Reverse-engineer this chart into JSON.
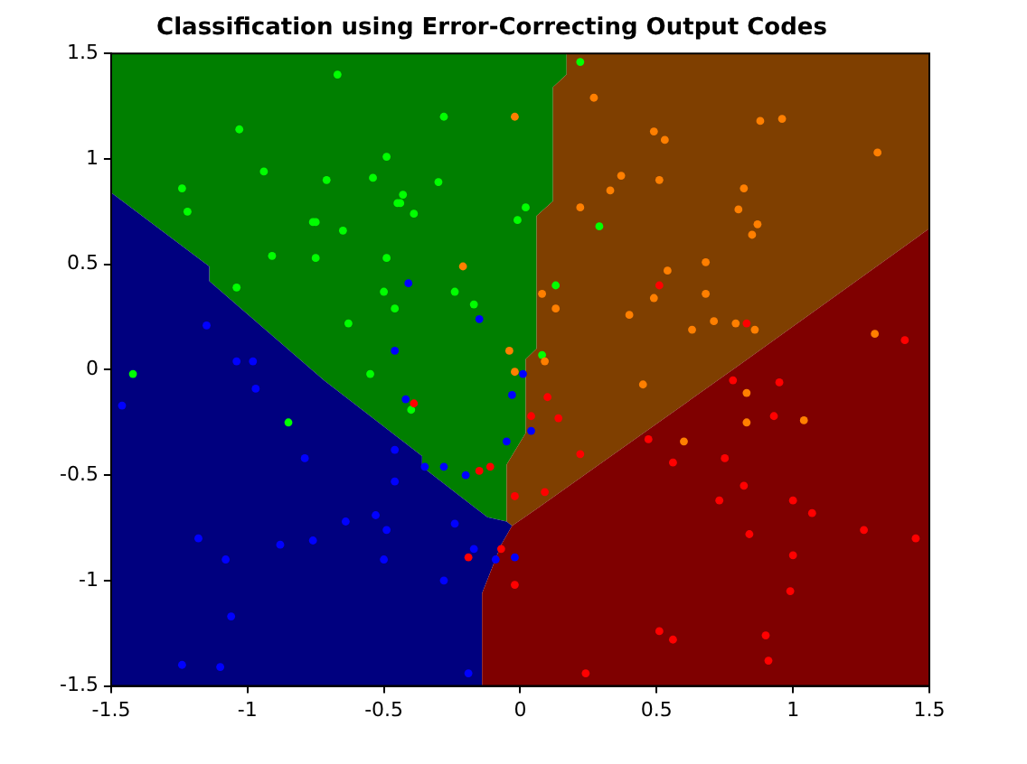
{
  "chart_data": {
    "type": "scatter",
    "title": "Classification using Error-Correcting Output Codes",
    "xlim": [
      -1.5,
      1.5
    ],
    "ylim": [
      -1.5,
      1.5
    ],
    "xticks": [
      -1.5,
      -1,
      -0.5,
      0,
      0.5,
      1,
      1.5
    ],
    "yticks": [
      -1.5,
      -1,
      -0.5,
      0,
      0.5,
      1,
      1.5
    ],
    "grid": false,
    "legend": false,
    "marker": "circle",
    "series": [
      {
        "type": "area",
        "marker": "none",
        "color": "#007f00",
        "x": [
          -1.5,
          0.17,
          0.17,
          0.12,
          0.12,
          0.06,
          0.06,
          0.02,
          0.02,
          -0.05,
          -0.05,
          -0.12,
          -0.36,
          -0.36,
          -0.72,
          -1.14,
          -1.14,
          -1.5
        ],
        "values": [
          1.5,
          1.5,
          1.4,
          1.34,
          0.8,
          0.73,
          0.1,
          0.05,
          -0.3,
          -0.45,
          -0.72,
          -0.7,
          -0.46,
          -0.41,
          -0.05,
          0.42,
          0.49,
          0.84
        ]
      },
      {
        "type": "area",
        "marker": "none",
        "color": "#7f3f00",
        "x": [
          -0.05,
          0.02,
          0.02,
          0.06,
          0.06,
          0.12,
          0.12,
          0.17,
          0.17,
          1.5,
          1.5,
          0.79,
          0.06,
          -0.03,
          -0.05
        ],
        "values": [
          -0.45,
          -0.3,
          0.05,
          0.1,
          0.73,
          0.8,
          1.34,
          1.4,
          1.5,
          1.5,
          0.67,
          0.01,
          -0.66,
          -0.74,
          -0.72
        ]
      },
      {
        "type": "area",
        "marker": "none",
        "color": "#00007f",
        "x": [
          -1.5,
          -1.14,
          -1.14,
          -0.72,
          -0.36,
          -0.36,
          -0.12,
          -0.05,
          -0.03,
          -0.07,
          -0.14,
          -0.14,
          -1.5
        ],
        "values": [
          0.84,
          0.49,
          0.42,
          -0.05,
          -0.41,
          -0.46,
          -0.7,
          -0.72,
          -0.74,
          -0.83,
          -1.06,
          -1.5,
          -1.5
        ]
      },
      {
        "type": "area",
        "marker": "none",
        "color": "#7f0000",
        "x": [
          -0.14,
          -0.14,
          -0.07,
          -0.03,
          0.06,
          0.79,
          1.5,
          1.5
        ],
        "values": [
          -1.5,
          -1.06,
          -0.83,
          -0.74,
          -0.66,
          0.01,
          0.67,
          -1.5
        ]
      },
      {
        "color": "#0000ff",
        "x": [
          -0.41,
          -0.15,
          -1.15,
          -0.46,
          -1.04,
          -0.98,
          -0.97,
          -1.46,
          -0.42,
          -0.03,
          -0.05,
          -0.79,
          -0.46,
          -0.35,
          -0.28,
          -0.2,
          -0.46,
          -0.53,
          -0.64,
          -0.49,
          -0.24,
          -1.18,
          -0.88,
          -0.76,
          -1.08,
          -0.5,
          -0.17,
          -0.09,
          -0.02,
          -0.28,
          -1.06,
          -1.24,
          -1.1,
          -0.19,
          0.01,
          0.04
        ],
        "values": [
          0.41,
          0.24,
          0.21,
          0.09,
          0.04,
          0.04,
          -0.09,
          -0.17,
          -0.14,
          -0.12,
          -0.34,
          -0.42,
          -0.38,
          -0.46,
          -0.46,
          -0.5,
          -0.53,
          -0.69,
          -0.72,
          -0.76,
          -0.73,
          -0.8,
          -0.83,
          -0.81,
          -0.9,
          -0.9,
          -0.85,
          -0.9,
          -0.89,
          -1.0,
          -1.17,
          -1.4,
          -1.41,
          -1.44,
          -0.02,
          -0.29
        ]
      },
      {
        "color": "#00ff00",
        "x": [
          -0.67,
          -0.28,
          -1.03,
          -0.49,
          -0.94,
          -1.24,
          -0.71,
          -0.54,
          -0.3,
          -0.43,
          -0.45,
          -0.44,
          -1.22,
          -0.39,
          -0.01,
          -0.76,
          -0.75,
          -0.65,
          -0.91,
          -0.75,
          -0.49,
          -1.04,
          -0.5,
          -0.24,
          -0.17,
          -0.46,
          -0.63,
          0.22,
          0.02,
          0.29,
          0.13,
          0.08,
          -1.42,
          -0.55,
          -0.4,
          -0.85
        ],
        "values": [
          1.4,
          1.2,
          1.14,
          1.01,
          0.94,
          0.86,
          0.9,
          0.91,
          0.89,
          0.83,
          0.79,
          0.79,
          0.75,
          0.74,
          0.71,
          0.7,
          0.7,
          0.66,
          0.54,
          0.53,
          0.53,
          0.39,
          0.37,
          0.37,
          0.31,
          0.29,
          0.22,
          1.46,
          0.77,
          0.68,
          0.4,
          0.07,
          -0.02,
          -0.02,
          -0.19,
          -0.25
        ]
      },
      {
        "color": "#ff7f00",
        "x": [
          -0.02,
          -0.21,
          -0.04,
          0.27,
          0.49,
          0.53,
          0.88,
          0.96,
          1.31,
          0.37,
          0.51,
          0.33,
          0.82,
          0.22,
          0.8,
          0.87,
          0.85,
          0.54,
          0.68,
          0.08,
          0.49,
          0.68,
          0.13,
          0.4,
          0.71,
          0.63,
          0.79,
          0.86,
          0.09,
          1.3,
          -0.02,
          0.45,
          0.83,
          0.83,
          1.04,
          0.6
        ],
        "values": [
          1.2,
          0.49,
          0.09,
          1.29,
          1.13,
          1.09,
          1.18,
          1.19,
          1.03,
          0.92,
          0.9,
          0.85,
          0.86,
          0.77,
          0.76,
          0.69,
          0.64,
          0.47,
          0.51,
          0.36,
          0.34,
          0.36,
          0.29,
          0.26,
          0.23,
          0.19,
          0.22,
          0.19,
          0.04,
          0.17,
          -0.01,
          -0.07,
          -0.11,
          -0.25,
          -0.24,
          -0.34
        ]
      },
      {
        "color": "#ff0000",
        "x": [
          0.51,
          0.83,
          1.41,
          -0.39,
          -0.15,
          -0.11,
          -0.02,
          -0.07,
          -0.19,
          -0.02,
          0.1,
          0.04,
          0.14,
          0.22,
          0.09,
          0.78,
          0.95,
          0.93,
          0.47,
          0.56,
          0.75,
          0.82,
          0.73,
          1.0,
          1.07,
          1.26,
          1.45,
          0.84,
          1.0,
          0.99,
          0.51,
          0.56,
          0.9,
          0.91,
          0.24
        ],
        "values": [
          0.4,
          0.22,
          0.14,
          -0.16,
          -0.48,
          -0.46,
          -0.6,
          -0.85,
          -0.89,
          -1.02,
          -0.13,
          -0.22,
          -0.23,
          -0.4,
          -0.58,
          -0.05,
          -0.06,
          -0.22,
          -0.33,
          -0.44,
          -0.42,
          -0.55,
          -0.62,
          -0.62,
          -0.68,
          -0.76,
          -0.8,
          -0.78,
          -0.88,
          -1.05,
          -1.24,
          -1.28,
          -1.26,
          -1.38,
          -1.44
        ]
      }
    ]
  }
}
